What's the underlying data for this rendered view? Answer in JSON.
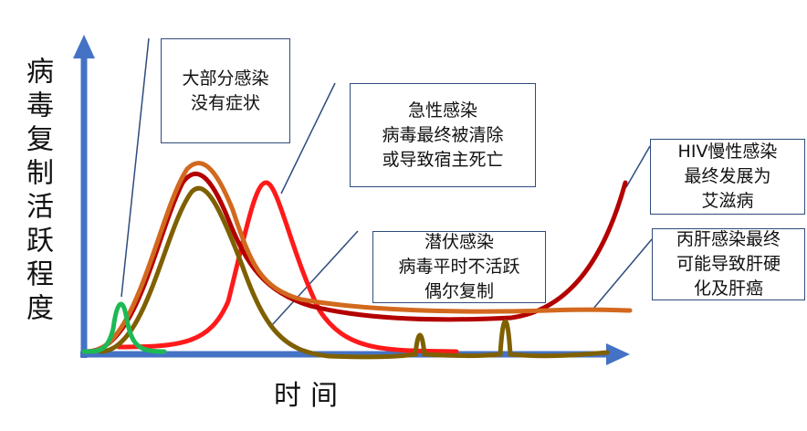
{
  "y_axis_label": "病毒复制活跃程度",
  "x_axis_label": "时间",
  "callouts": [
    {
      "lines": [
        "大部分感染",
        "没有症状"
      ]
    },
    {
      "lines": [
        "急性感染",
        "病毒最终被清除",
        "或导致宿主死亡"
      ]
    },
    {
      "lines": [
        "HIV慢性感染",
        "最终发展为",
        "艾滋病"
      ]
    },
    {
      "lines": [
        "潜伏感染",
        "病毒平时不活跃",
        "偶尔复制"
      ]
    },
    {
      "lines": [
        "丙肝感染最终",
        "可能导致肝硬",
        "化及肝癌"
      ]
    }
  ]
}
